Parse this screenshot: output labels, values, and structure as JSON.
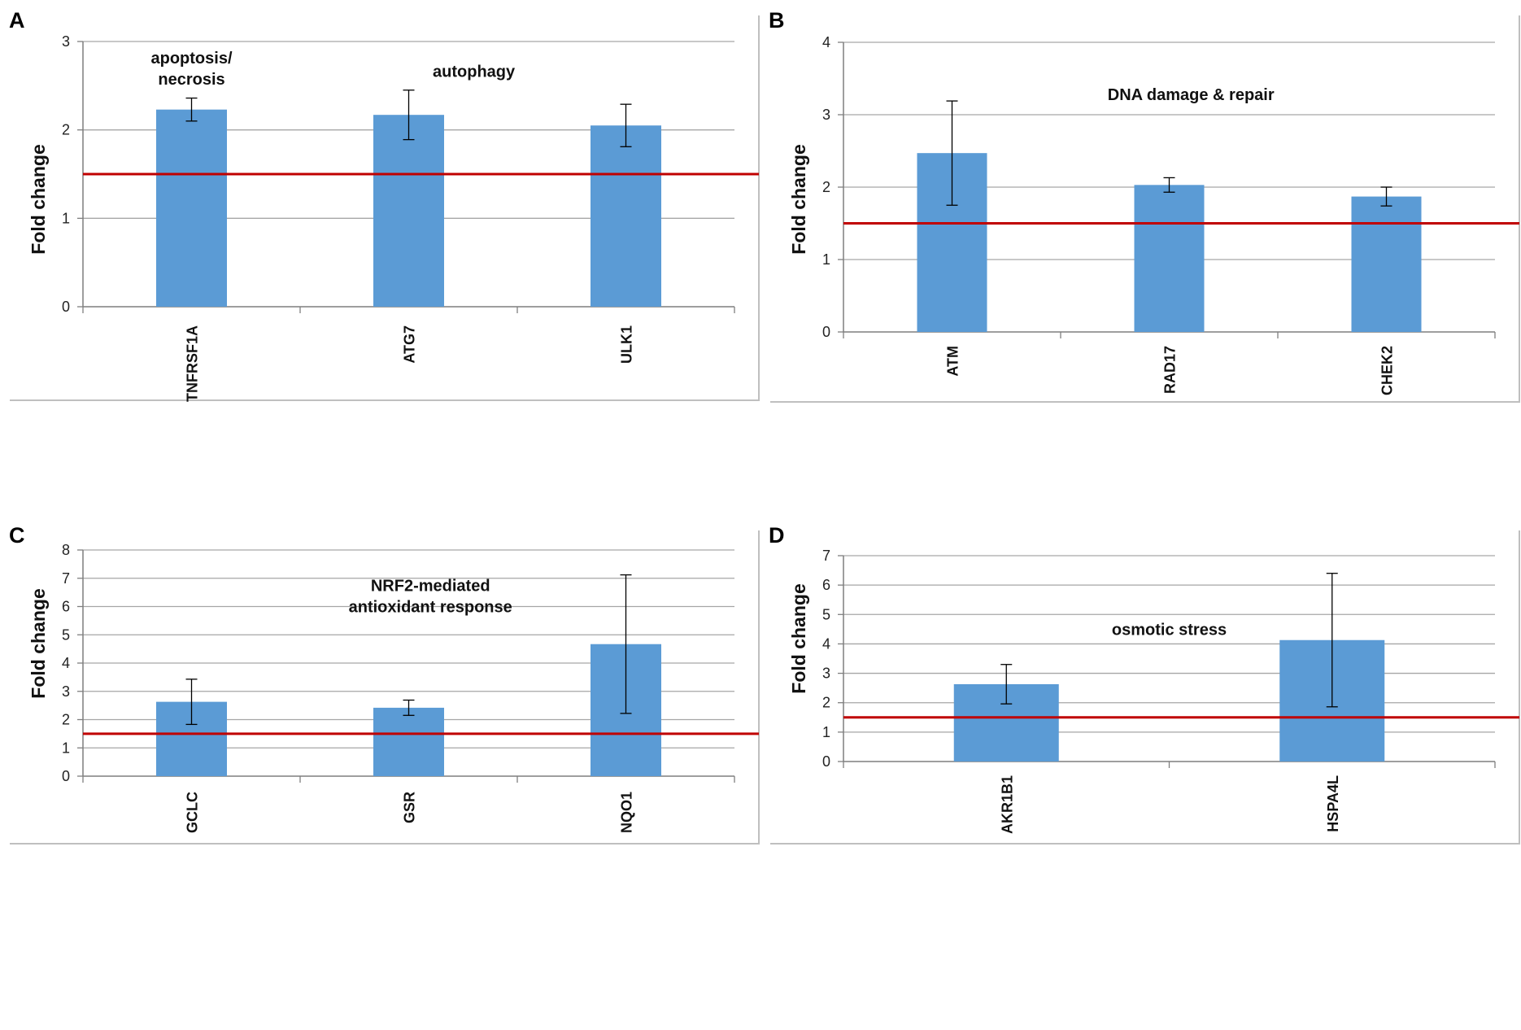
{
  "chart_data": [
    {
      "panel": "A",
      "type": "bar",
      "ylabel": "Fold change",
      "ylim": [
        0,
        3
      ],
      "yticks": [
        "0",
        "1",
        "2",
        "3"
      ],
      "categories": [
        "TNFRSF1A",
        "ATG7",
        "ULK1"
      ],
      "values": [
        2.23,
        2.17,
        2.05
      ],
      "errors": [
        0.13,
        0.28,
        0.24
      ],
      "threshold": 1.5,
      "annotations": [
        {
          "lines": [
            "apoptosis/",
            "necrosis"
          ],
          "x": 0,
          "y": 2.75
        },
        {
          "lines": [
            "autophagy"
          ],
          "x": 1.3,
          "y": 2.6
        }
      ],
      "grid": true
    },
    {
      "panel": "B",
      "type": "bar",
      "ylabel": "Fold change",
      "ylim": [
        0,
        4
      ],
      "yticks": [
        "0",
        "1",
        "2",
        "3",
        "4"
      ],
      "categories": [
        "ATM",
        "RAD17",
        "CHEK2"
      ],
      "values": [
        2.47,
        2.03,
        1.87
      ],
      "errors": [
        0.72,
        0.1,
        0.13
      ],
      "threshold": 1.5,
      "annotations": [
        {
          "lines": [
            "DNA damage & repair"
          ],
          "x": 1.1,
          "y": 3.2
        }
      ],
      "grid": true
    },
    {
      "panel": "C",
      "type": "bar",
      "ylabel": "Fold change",
      "ylim": [
        0,
        8
      ],
      "yticks": [
        "0",
        "1",
        "2",
        "3",
        "4",
        "5",
        "6",
        "7",
        "8"
      ],
      "categories": [
        "GCLC",
        "GSR",
        "NQO1"
      ],
      "values": [
        2.63,
        2.42,
        4.67
      ],
      "errors": [
        0.8,
        0.27,
        2.45
      ],
      "threshold": 1.5,
      "annotations": [
        {
          "lines": [
            "NRF2-mediated",
            "antioxidant response"
          ],
          "x": 1.1,
          "y": 6.55
        }
      ],
      "grid": true
    },
    {
      "panel": "D",
      "type": "bar",
      "ylabel": "Fold change",
      "ylim": [
        0,
        7
      ],
      "yticks": [
        "0",
        "1",
        "2",
        "3",
        "4",
        "5",
        "6",
        "7"
      ],
      "categories": [
        "AKR1B1",
        "HSPA4L"
      ],
      "values": [
        2.63,
        4.13
      ],
      "errors": [
        0.67,
        2.27
      ],
      "threshold": 1.5,
      "annotations": [
        {
          "lines": [
            "osmotic stress"
          ],
          "x": 0.5,
          "y": 4.3
        }
      ],
      "grid": true
    }
  ],
  "colors": {
    "bar": "#5b9bd5",
    "threshold": "#c00000",
    "grid": "#a6a6a6",
    "axis": "#7f7f7f",
    "frame": "#bfbfbf"
  }
}
